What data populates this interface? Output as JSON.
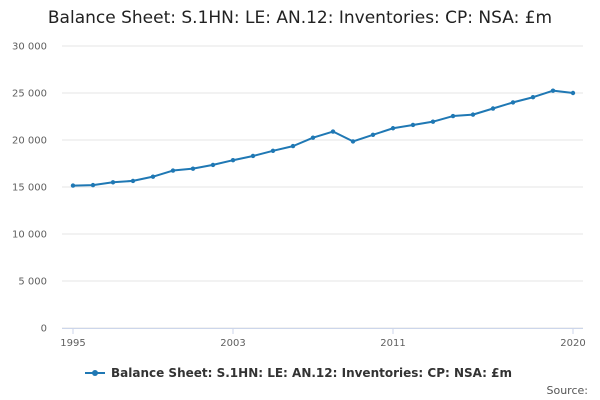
{
  "chart_data": {
    "type": "line",
    "title": "Balance Sheet: S.1HN: LE: AN.12: Inventories: CP: NSA: £m",
    "xlabel": "",
    "ylabel": "",
    "x": [
      1995,
      1996,
      1997,
      1998,
      1999,
      2000,
      2001,
      2002,
      2003,
      2004,
      2005,
      2006,
      2007,
      2008,
      2009,
      2010,
      2011,
      2012,
      2013,
      2014,
      2015,
      2016,
      2017,
      2018,
      2019,
      2020
    ],
    "xticks": [
      "1995",
      "2003",
      "2011",
      "2020"
    ],
    "xlim": [
      1995,
      2020
    ],
    "ylim": [
      0,
      30000
    ],
    "yticks": [
      "0",
      "5 000",
      "10 000",
      "15 000",
      "20 000",
      "25 000",
      "30 000"
    ],
    "series": [
      {
        "name": "Balance Sheet: S.1HN: LE: AN.12: Inventories: CP: NSA: £m",
        "color": "#1f78b4",
        "values": [
          15150,
          15200,
          15500,
          15650,
          16100,
          16750,
          16950,
          17350,
          17850,
          18300,
          18850,
          19350,
          20250,
          20900,
          19850,
          20550,
          21250,
          21600,
          21950,
          22550,
          22700,
          23350,
          24000,
          24550,
          25250,
          25000
        ]
      }
    ]
  },
  "source_label": "Source:"
}
